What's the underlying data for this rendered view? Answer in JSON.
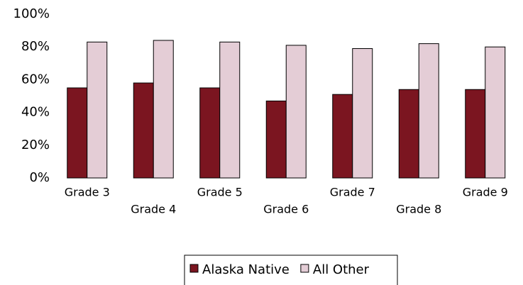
{
  "chart_data": {
    "type": "bar",
    "categories": [
      "Grade 3",
      "Grade 4",
      "Grade 5",
      "Grade 6",
      "Grade 7",
      "Grade 8",
      "Grade 9"
    ],
    "series": [
      {
        "name": "Alaska Native",
        "color": "#7b1520",
        "values": [
          55,
          58,
          55,
          47,
          51,
          54,
          54
        ]
      },
      {
        "name": "All Other",
        "color": "#e4cdd6",
        "values": [
          83,
          84,
          83,
          81,
          79,
          82,
          80
        ]
      }
    ],
    "ylim": [
      0,
      100
    ],
    "yticks": [
      {
        "value": 0,
        "label": "0%"
      },
      {
        "value": 20,
        "label": "20%"
      },
      {
        "value": 40,
        "label": "40%"
      },
      {
        "value": 60,
        "label": "60%"
      },
      {
        "value": 80,
        "label": "80%"
      },
      {
        "value": 100,
        "label": "100%"
      }
    ],
    "legend": "bottom"
  }
}
